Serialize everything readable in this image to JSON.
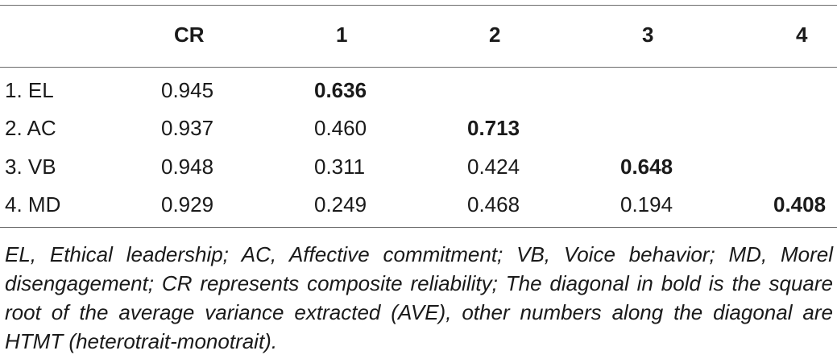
{
  "table": {
    "headers": [
      "",
      "CR",
      "1",
      "2",
      "3",
      "4"
    ],
    "rows": [
      {
        "label": "1. EL",
        "cr": "0.945",
        "v1": "0.636",
        "v2": "",
        "v3": "",
        "v4": ""
      },
      {
        "label": "2. AC",
        "cr": "0.937",
        "v1": "0.460",
        "v2": "0.713",
        "v3": "",
        "v4": ""
      },
      {
        "label": "3. VB",
        "cr": "0.948",
        "v1": "0.311",
        "v2": "0.424",
        "v3": "0.648",
        "v4": ""
      },
      {
        "label": "4. MD",
        "cr": "0.929",
        "v1": "0.249",
        "v2": "0.468",
        "v3": "0.194",
        "v4": "0.408"
      }
    ]
  },
  "footnote": "EL, Ethical leadership; AC, Affective commitment; VB, Voice behavior; MD, Morel disengagement; CR represents composite reliability; The diagonal in bold is the square root of the average variance extracted (AVE), other numbers along the diagonal are HTMT (heterotrait-monotrait)."
}
